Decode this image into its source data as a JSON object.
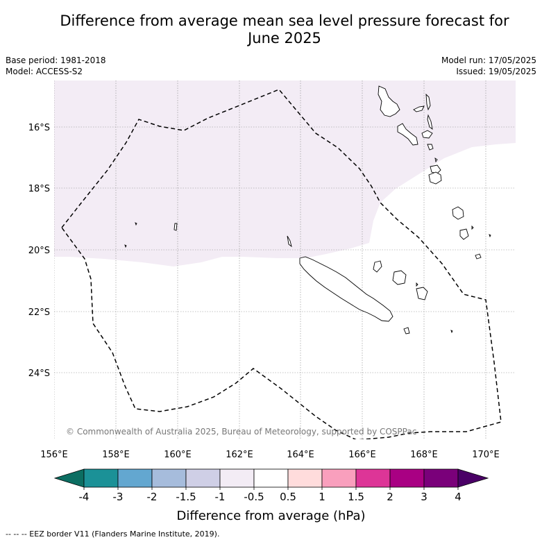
{
  "title_line1": "Difference from average mean sea level pressure forecast for",
  "title_line2": "June 2025",
  "meta": {
    "base_period": "Base period: 1981-2018",
    "model": "Model: ACCESS-S2",
    "model_run": "Model run: 17/05/2025",
    "issued": "Issued: 19/05/2025"
  },
  "map": {
    "lat_labels": [
      "16°S",
      "18°S",
      "20°S",
      "22°S",
      "24°S"
    ],
    "lon_labels": [
      "156°E",
      "158°E",
      "160°E",
      "162°E",
      "164°E",
      "166°E",
      "168°E",
      "170°E"
    ],
    "copyright": "© Commonwealth of Australia 2025, Bureau of Meteorology, supported by COSPPac",
    "shading_color": "#f3ecf5",
    "border_color": "#000000"
  },
  "colorbar": {
    "colors": [
      "#0c6e62",
      "#1b9197",
      "#63a7d0",
      "#a6bcdc",
      "#cfcfe6",
      "#f3ecf5",
      "#ffffff",
      "#ffdcdc",
      "#f99fbd",
      "#dd3597",
      "#a90083",
      "#7a007a",
      "#4a0066"
    ],
    "tick_labels": [
      "-4",
      "-3",
      "-2",
      "-1.5",
      "-1",
      "-0.5",
      "0.5",
      "1",
      "1.5",
      "2",
      "3",
      "4"
    ],
    "label": "Difference from average (hPa)"
  },
  "footer": "--  --  -- EEZ border V11 (Flanders Marine Institute, 2019)."
}
